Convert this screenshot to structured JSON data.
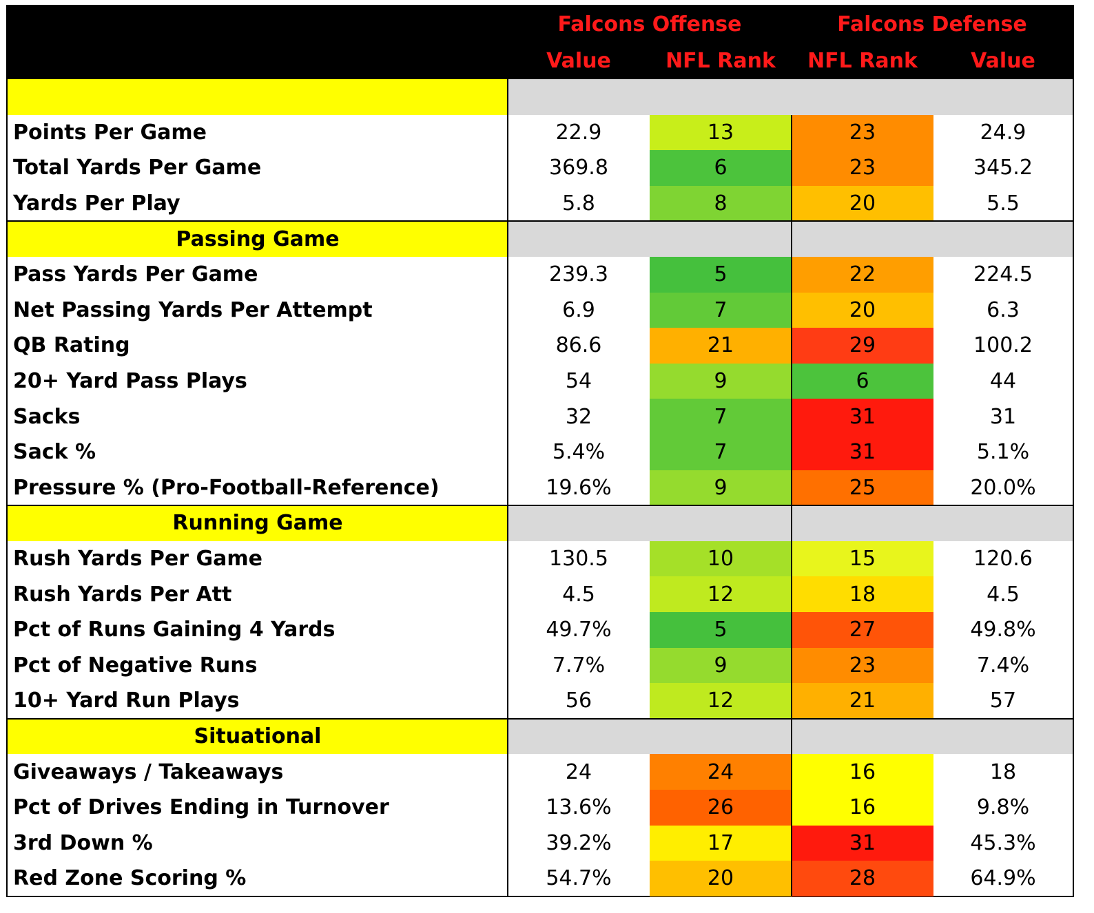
{
  "header": {
    "offense_title": "Falcons Offense",
    "defense_title": "Falcons Defense",
    "col_off_value": "Value",
    "col_off_rank": "NFL Rank",
    "col_def_rank": "NFL Rank",
    "col_def_value": "Value"
  },
  "sections": [
    {
      "title": "",
      "rows": [
        {
          "label": "Points Per Game",
          "off_value": "22.9",
          "off_rank": "13",
          "off_color": "#c8ee1a",
          "def_rank": "23",
          "def_color": "#ff8c00",
          "def_value": "24.9"
        },
        {
          "label": "Total Yards Per Game",
          "off_value": "369.8",
          "off_rank": "6",
          "off_color": "#4cc33c",
          "def_rank": "23",
          "def_color": "#ff8c00",
          "def_value": "345.2"
        },
        {
          "label": "Yards Per Play",
          "off_value": "5.8",
          "off_rank": "8",
          "off_color": "#7fd433",
          "def_rank": "20",
          "def_color": "#ffbf00",
          "def_value": "5.5"
        }
      ]
    },
    {
      "title": "Passing Game",
      "rows": [
        {
          "label": "Pass Yards Per Game",
          "off_value": "239.3",
          "off_rank": "5",
          "off_color": "#45c03d",
          "def_rank": "22",
          "def_color": "#ff9e00",
          "def_value": "224.5"
        },
        {
          "label": "Net Passing Yards Per Attempt",
          "off_value": "6.9",
          "off_rank": "7",
          "off_color": "#62ca38",
          "def_rank": "20",
          "def_color": "#ffbf00",
          "def_value": "6.3"
        },
        {
          "label": "QB Rating",
          "off_value": "86.6",
          "off_rank": "21",
          "off_color": "#ffb000",
          "def_rank": "29",
          "def_color": "#ff3c14",
          "def_value": "100.2"
        },
        {
          "label": "20+ Yard Pass Plays",
          "off_value": "54",
          "off_rank": "9",
          "off_color": "#95db2e",
          "def_rank": "6",
          "def_color": "#4cc33c",
          "def_value": "44"
        },
        {
          "label": "Sacks",
          "off_value": "32",
          "off_rank": "7",
          "off_color": "#62ca38",
          "def_rank": "31",
          "def_color": "#ff1a0d",
          "def_value": "31"
        },
        {
          "label": "Sack %",
          "off_value": "5.4%",
          "off_rank": "7",
          "off_color": "#62ca38",
          "def_rank": "31",
          "def_color": "#ff1a0d",
          "def_value": "5.1%"
        },
        {
          "label": "Pressure % (Pro-Football-Reference)",
          "off_value": "19.6%",
          "off_rank": "9",
          "off_color": "#95db2e",
          "def_rank": "25",
          "def_color": "#ff7000",
          "def_value": "20.0%"
        }
      ]
    },
    {
      "title": "Running Game",
      "rows": [
        {
          "label": "Rush Yards Per Game",
          "off_value": "130.5",
          "off_rank": "10",
          "off_color": "#a5e028",
          "def_rank": "15",
          "def_color": "#e8f51c",
          "def_value": "120.6"
        },
        {
          "label": "Rush Yards Per Att",
          "off_value": "4.5",
          "off_rank": "12",
          "off_color": "#bfea1f",
          "def_rank": "18",
          "def_color": "#ffdd00",
          "def_value": "4.5"
        },
        {
          "label": "Pct of Runs Gaining 4 Yards",
          "off_value": "49.7%",
          "off_rank": "5",
          "off_color": "#45c03d",
          "def_rank": "27",
          "def_color": "#ff5408",
          "def_value": "49.8%"
        },
        {
          "label": "Pct of Negative Runs",
          "off_value": "7.7%",
          "off_rank": "9",
          "off_color": "#95db2e",
          "def_rank": "23",
          "def_color": "#ff8c00",
          "def_value": "7.4%"
        },
        {
          "label": "10+ Yard Run Plays",
          "off_value": "56",
          "off_rank": "12",
          "off_color": "#bfea1f",
          "def_rank": "21",
          "def_color": "#ffb000",
          "def_value": "57"
        }
      ]
    },
    {
      "title": "Situational",
      "rows": [
        {
          "label": "Giveaways / Takeaways",
          "off_value": "24",
          "off_rank": "24",
          "off_color": "#ff8000",
          "def_rank": "16",
          "def_color": "#ffff00",
          "def_value": "18"
        },
        {
          "label": "Pct of Drives Ending in Turnover",
          "off_value": "13.6%",
          "off_rank": "26",
          "off_color": "#ff6200",
          "def_rank": "16",
          "def_color": "#ffff00",
          "def_value": "9.8%"
        },
        {
          "label": "3rd Down %",
          "off_value": "39.2%",
          "off_rank": "17",
          "off_color": "#ffee00",
          "def_rank": "31",
          "def_color": "#ff1a0d",
          "def_value": "45.3%"
        },
        {
          "label": "Red Zone Scoring %",
          "off_value": "54.7%",
          "off_rank": "20",
          "off_color": "#ffbf00",
          "def_rank": "28",
          "def_color": "#ff4a0e",
          "def_value": "64.9%"
        }
      ]
    }
  ]
}
